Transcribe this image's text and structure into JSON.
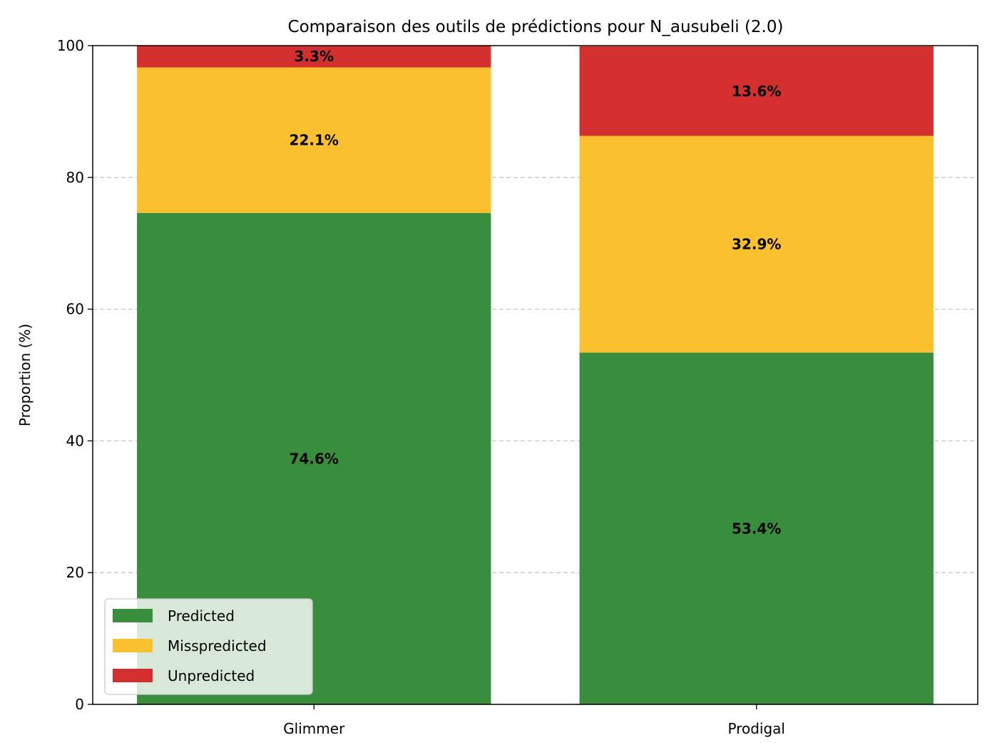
{
  "chart_data": {
    "type": "bar",
    "stacked": true,
    "title": "Comparaison des outils de prédictions pour N_ausubeli (2.0)",
    "xlabel": "",
    "ylabel": "Proportion (%)",
    "ylim": [
      0,
      100
    ],
    "yticks": [
      "0",
      "20",
      "40",
      "60",
      "80",
      "100"
    ],
    "categories": [
      "Glimmer",
      "Prodigal"
    ],
    "grid": {
      "y": true,
      "x": false
    },
    "legend_position": "lower-left",
    "series": [
      {
        "name": "Predicted",
        "color": "#388e3c",
        "values": [
          74.6,
          53.4
        ],
        "labels": [
          "74.6%",
          "53.4%"
        ]
      },
      {
        "name": "Misspredicted",
        "color": "#fbc02d",
        "values": [
          22.1,
          32.9
        ],
        "labels": [
          "22.1%",
          "32.9%"
        ]
      },
      {
        "name": "Unpredicted",
        "color": "#d32f2f",
        "values": [
          3.3,
          13.6
        ],
        "labels": [
          "3.3%",
          "13.6%"
        ]
      }
    ]
  }
}
